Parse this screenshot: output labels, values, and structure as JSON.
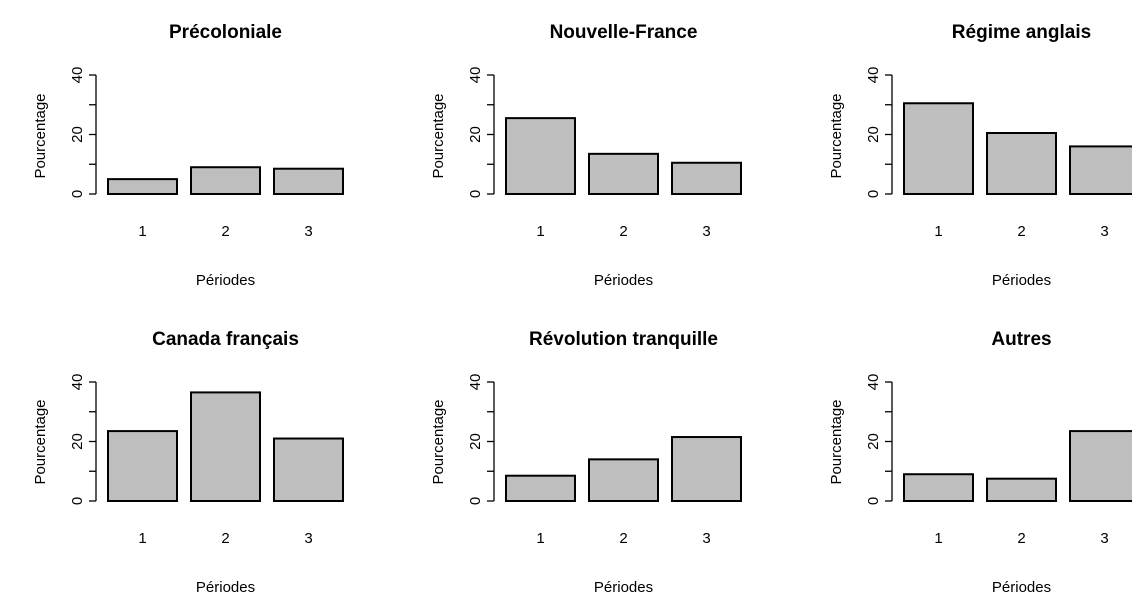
{
  "chart_data": [
    {
      "type": "bar",
      "title": "Précoloniale",
      "xlabel": "Périodes",
      "ylabel": "Pourcentage",
      "categories": [
        "1",
        "2",
        "3"
      ],
      "values": [
        5,
        9,
        8.5
      ],
      "ylim": [
        0,
        40
      ],
      "yticks": [
        "0",
        "20",
        "40"
      ],
      "grid": false,
      "bar_color": "#bebebe"
    },
    {
      "type": "bar",
      "title": "Nouvelle-France",
      "xlabel": "Périodes",
      "ylabel": "Pourcentage",
      "categories": [
        "1",
        "2",
        "3"
      ],
      "values": [
        25.5,
        13.5,
        10.5
      ],
      "ylim": [
        0,
        40
      ],
      "yticks": [
        "0",
        "20",
        "40"
      ],
      "grid": false,
      "bar_color": "#bebebe"
    },
    {
      "type": "bar",
      "title": "Régime anglais",
      "xlabel": "Périodes",
      "ylabel": "Pourcentage",
      "categories": [
        "1",
        "2",
        "3"
      ],
      "values": [
        30.5,
        20.5,
        16
      ],
      "ylim": [
        0,
        40
      ],
      "yticks": [
        "0",
        "20",
        "40"
      ],
      "grid": false,
      "bar_color": "#bebebe"
    },
    {
      "type": "bar",
      "title": "Canada français",
      "xlabel": "Périodes",
      "ylabel": "Pourcentage",
      "categories": [
        "1",
        "2",
        "3"
      ],
      "values": [
        23.5,
        36.5,
        21
      ],
      "ylim": [
        0,
        40
      ],
      "yticks": [
        "0",
        "20",
        "40"
      ],
      "grid": false,
      "bar_color": "#bebebe"
    },
    {
      "type": "bar",
      "title": "Révolution tranquille",
      "xlabel": "Périodes",
      "ylabel": "Pourcentage",
      "categories": [
        "1",
        "2",
        "3"
      ],
      "values": [
        8.5,
        14,
        21.5
      ],
      "ylim": [
        0,
        40
      ],
      "yticks": [
        "0",
        "20",
        "40"
      ],
      "grid": false,
      "bar_color": "#bebebe"
    },
    {
      "type": "bar",
      "title": "Autres",
      "xlabel": "Périodes",
      "ylabel": "Pourcentage",
      "categories": [
        "1",
        "2",
        "3"
      ],
      "values": [
        9,
        7.5,
        23.5
      ],
      "ylim": [
        0,
        40
      ],
      "yticks": [
        "0",
        "20",
        "40"
      ],
      "grid": false,
      "bar_color": "#bebebe"
    }
  ]
}
